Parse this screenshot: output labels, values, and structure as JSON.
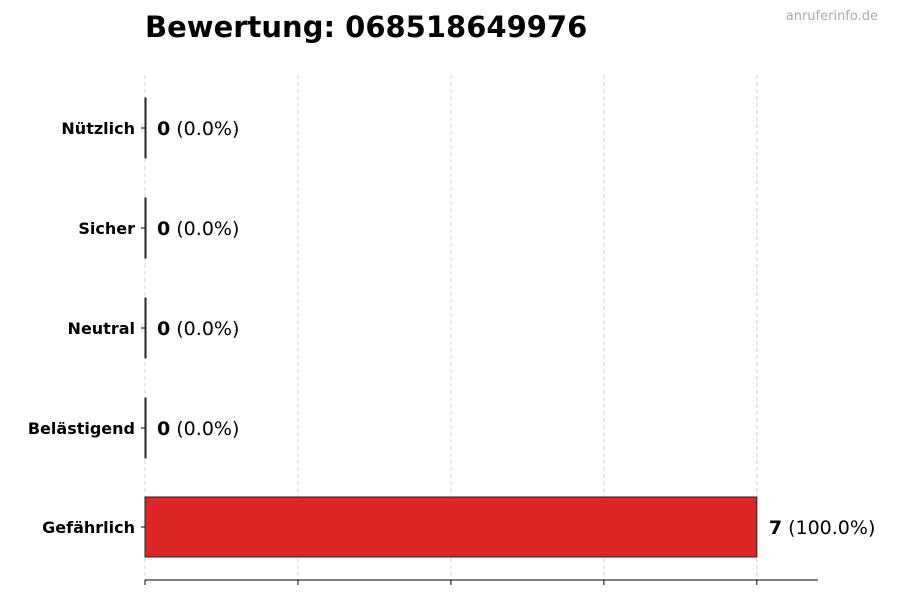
{
  "chart_data": {
    "type": "bar",
    "orientation": "horizontal",
    "title": "Bewertung: 068518649976",
    "watermark": "anruferinfo.de",
    "categories": [
      "Nützlich",
      "Sicher",
      "Neutral",
      "Belästigend",
      "Gefährlich"
    ],
    "values": [
      0,
      0,
      0,
      0,
      7
    ],
    "labels": [
      {
        "count": "0",
        "pct": "(0.0%)"
      },
      {
        "count": "0",
        "pct": "(0.0%)"
      },
      {
        "count": "0",
        "pct": "(0.0%)"
      },
      {
        "count": "0",
        "pct": "(0.0%)"
      },
      {
        "count": "7",
        "pct": "(100.0%)"
      }
    ],
    "colors": [
      "#2e7d32",
      "#4caf50",
      "#9e9e9e",
      "#ff9800",
      "#dc2626"
    ],
    "xlim": [
      0,
      7.7
    ],
    "xticks": [
      0,
      1.75,
      3.5,
      5.25,
      7
    ],
    "grid": "x-dashed",
    "xlabel": "",
    "ylabel": ""
  }
}
